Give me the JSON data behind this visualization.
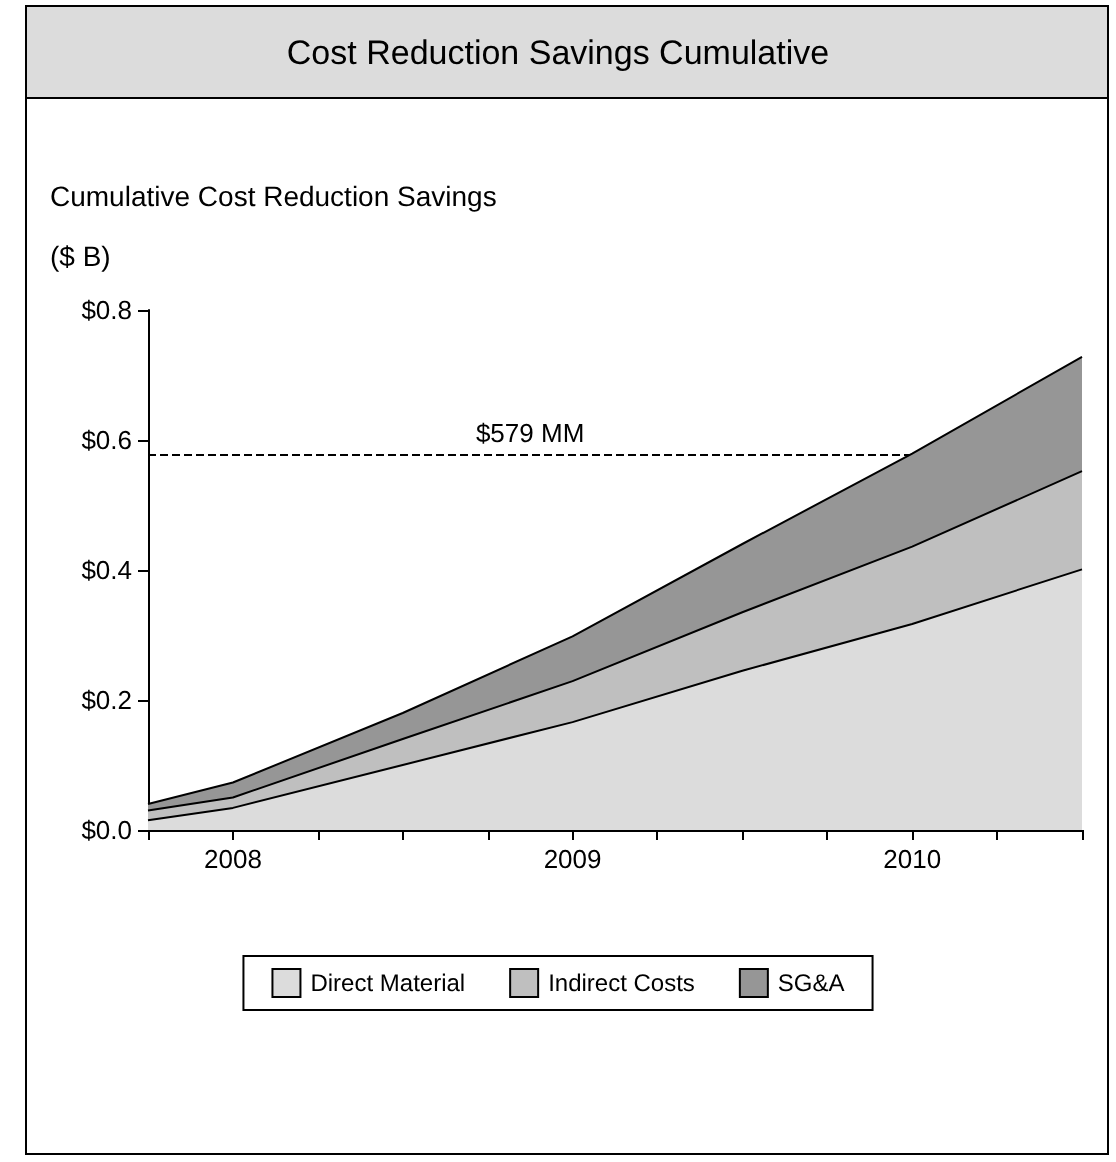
{
  "chart_data": {
    "type": "area",
    "title": "Cost Reduction Savings Cumulative",
    "ylabel": "Cumulative Cost Reduction Savings\n($ B)",
    "x": [
      2007.75,
      2008,
      2008.5,
      2009,
      2009.5,
      2010,
      2010.5
    ],
    "stacked": true,
    "series": [
      {
        "name": "Direct Material",
        "color": "#dcdcdc",
        "values": [
          0.015,
          0.034,
          0.1,
          0.166,
          0.245,
          0.317,
          0.401
        ]
      },
      {
        "name": "Indirect Costs",
        "color": "#bfbfbf",
        "values": [
          0.015,
          0.016,
          0.04,
          0.063,
          0.09,
          0.119,
          0.151
        ]
      },
      {
        "name": "SG&A",
        "color": "#969696",
        "values": [
          0.01,
          0.023,
          0.04,
          0.069,
          0.105,
          0.143,
          0.176
        ]
      }
    ],
    "xlim": [
      2007.75,
      2010.5
    ],
    "xticks": [
      {
        "value": 2007.75,
        "label": null
      },
      2008,
      {
        "value": 2008.25,
        "label": null
      },
      {
        "value": 2008.5,
        "label": null
      },
      {
        "value": 2008.75,
        "label": null
      },
      2009,
      {
        "value": 2009.25,
        "label": null
      },
      {
        "value": 2009.5,
        "label": null
      },
      {
        "value": 2009.75,
        "label": null
      },
      2010,
      {
        "value": 2010.25,
        "label": null
      },
      {
        "value": 2010.5,
        "label": null
      }
    ],
    "ylim": [
      0,
      0.8
    ],
    "yticks": [
      {
        "value": 0,
        "label": "$0.0"
      },
      {
        "value": 0.2,
        "label": "$0.2"
      },
      {
        "value": 0.4,
        "label": "$0.4"
      },
      {
        "value": 0.6,
        "label": "$0.6"
      },
      {
        "value": 0.8,
        "label": "$0.8"
      }
    ],
    "ref_lines": [
      {
        "axis": "y",
        "value": 0.579,
        "label": "$579 MM",
        "line_style": "dashed"
      }
    ],
    "grid": false,
    "legend": "bottom"
  }
}
